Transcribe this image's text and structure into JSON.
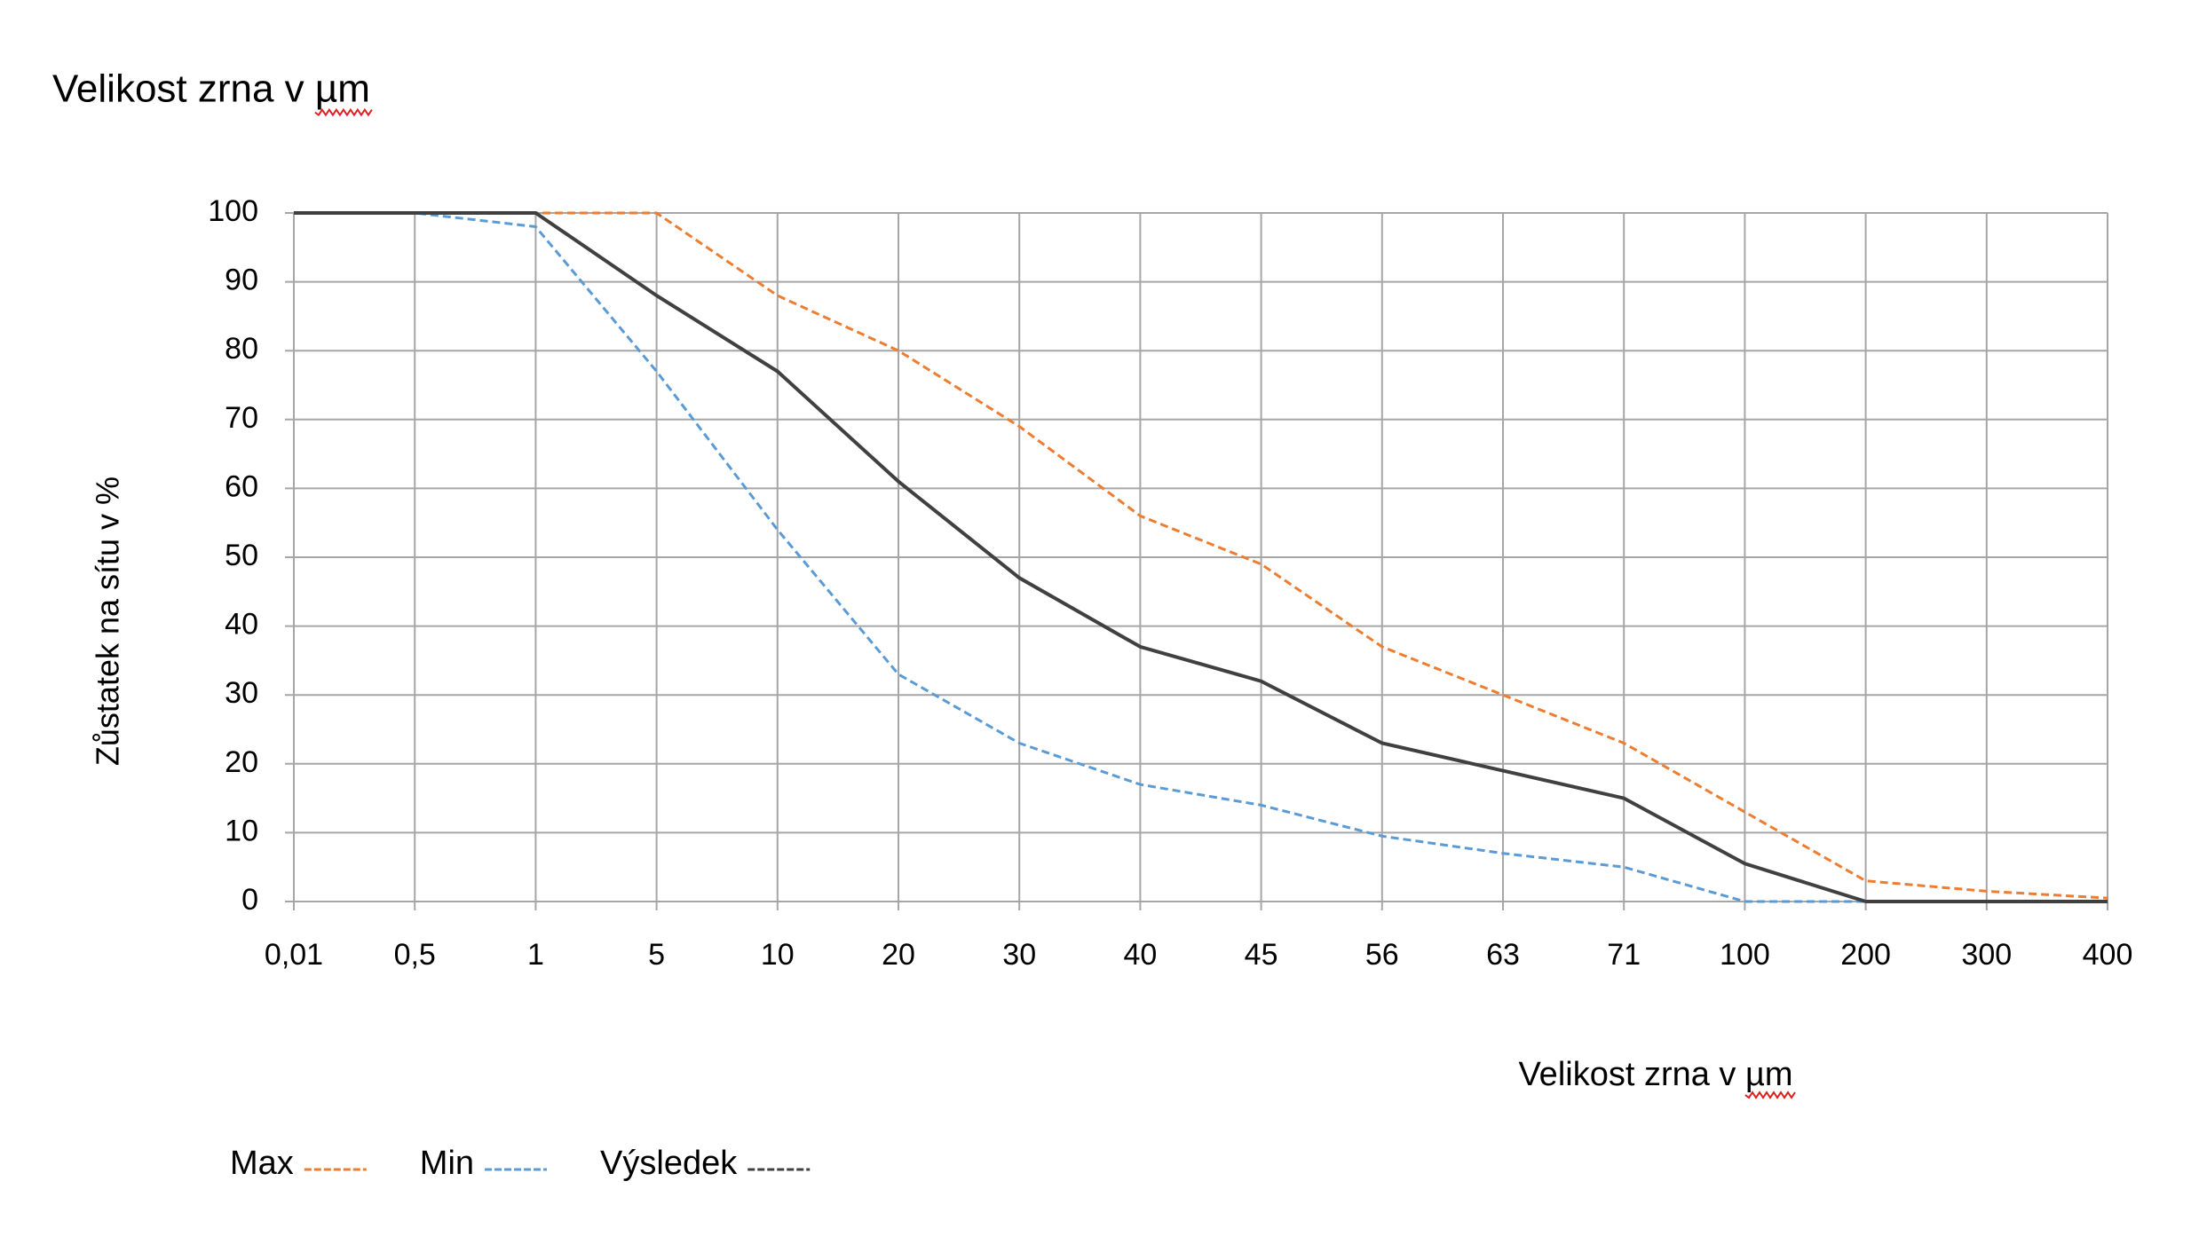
{
  "chart_data": {
    "type": "line",
    "title": "Velikost zrna v µm",
    "x_label": "Velikost zrna v µm",
    "y_label": "Zůstatek na sítu v %",
    "categories": [
      "0,01",
      "0,5",
      "1",
      "5",
      "10",
      "20",
      "30",
      "40",
      "45",
      "56",
      "63",
      "71",
      "100",
      "200",
      "300",
      "400"
    ],
    "series": [
      {
        "name": "Max",
        "color": "#ed7d31",
        "dashed": true,
        "values": [
          100,
          100,
          100,
          100,
          88,
          80,
          69,
          56,
          49,
          37,
          30,
          23,
          13,
          3,
          1.5,
          0.5
        ]
      },
      {
        "name": "Min",
        "color": "#5b9bd5",
        "dashed": true,
        "values": [
          100,
          100,
          98,
          77,
          54,
          33,
          23,
          17,
          14,
          9.5,
          7,
          5,
          0,
          0,
          0,
          0
        ]
      },
      {
        "name": "Výsledek",
        "color": "#404040",
        "dashed": false,
        "values": [
          100,
          100,
          100,
          88,
          77,
          61,
          47,
          37,
          32,
          23,
          19,
          15,
          5.5,
          0,
          0,
          0
        ]
      }
    ],
    "ylim": [
      0,
      100
    ],
    "yticks": [
      0,
      10,
      20,
      30,
      40,
      50,
      60,
      70,
      80,
      90,
      100
    ],
    "grid": true
  }
}
